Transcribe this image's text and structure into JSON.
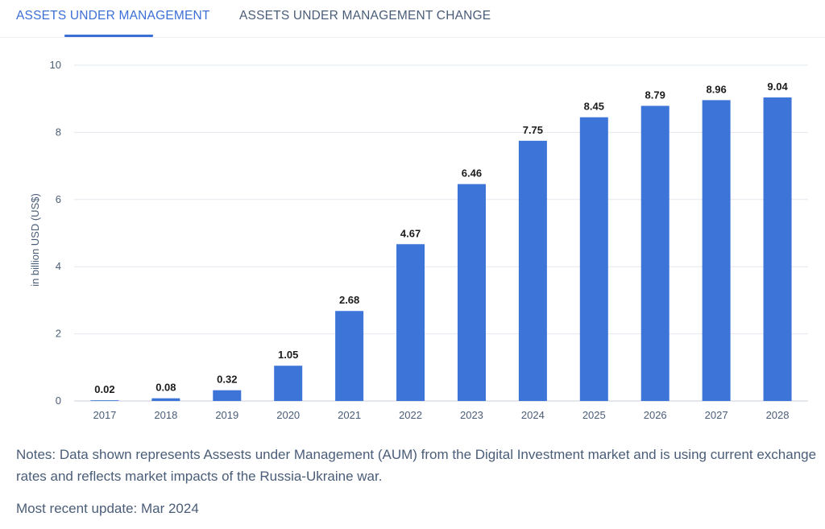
{
  "tabs": [
    {
      "label": "ASSETS UNDER MANAGEMENT",
      "active": true
    },
    {
      "label": "ASSETS UNDER MANAGEMENT CHANGE",
      "active": false
    }
  ],
  "colors": {
    "bar": "#3c74d8",
    "active_tab": "#3c6fd6",
    "text": "#4a5d78",
    "grid": "#e3e8ef"
  },
  "chart_data": {
    "type": "bar",
    "categories": [
      "2017",
      "2018",
      "2019",
      "2020",
      "2021",
      "2022",
      "2023",
      "2024",
      "2025",
      "2026",
      "2027",
      "2028"
    ],
    "values": [
      0.02,
      0.08,
      0.32,
      1.05,
      2.68,
      4.67,
      6.46,
      7.75,
      8.45,
      8.79,
      8.96,
      9.04
    ],
    "value_labels": [
      "0.02",
      "0.08",
      "0.32",
      "1.05",
      "2.68",
      "4.67",
      "6.46",
      "7.75",
      "8.45",
      "8.79",
      "8.96",
      "9.04"
    ],
    "ylabel": "in billion USD (US$)",
    "xlabel": "",
    "ylim": [
      0,
      10
    ],
    "yticks": [
      0,
      2,
      4,
      6,
      8,
      10
    ],
    "grid": true
  },
  "notes": "Notes: Data shown represents Assests under Management (AUM) from the Digital Investment market and is using current exchange rates and reflects market impacts of the Russia-Ukraine war.",
  "update": "Most recent update: Mar 2024"
}
